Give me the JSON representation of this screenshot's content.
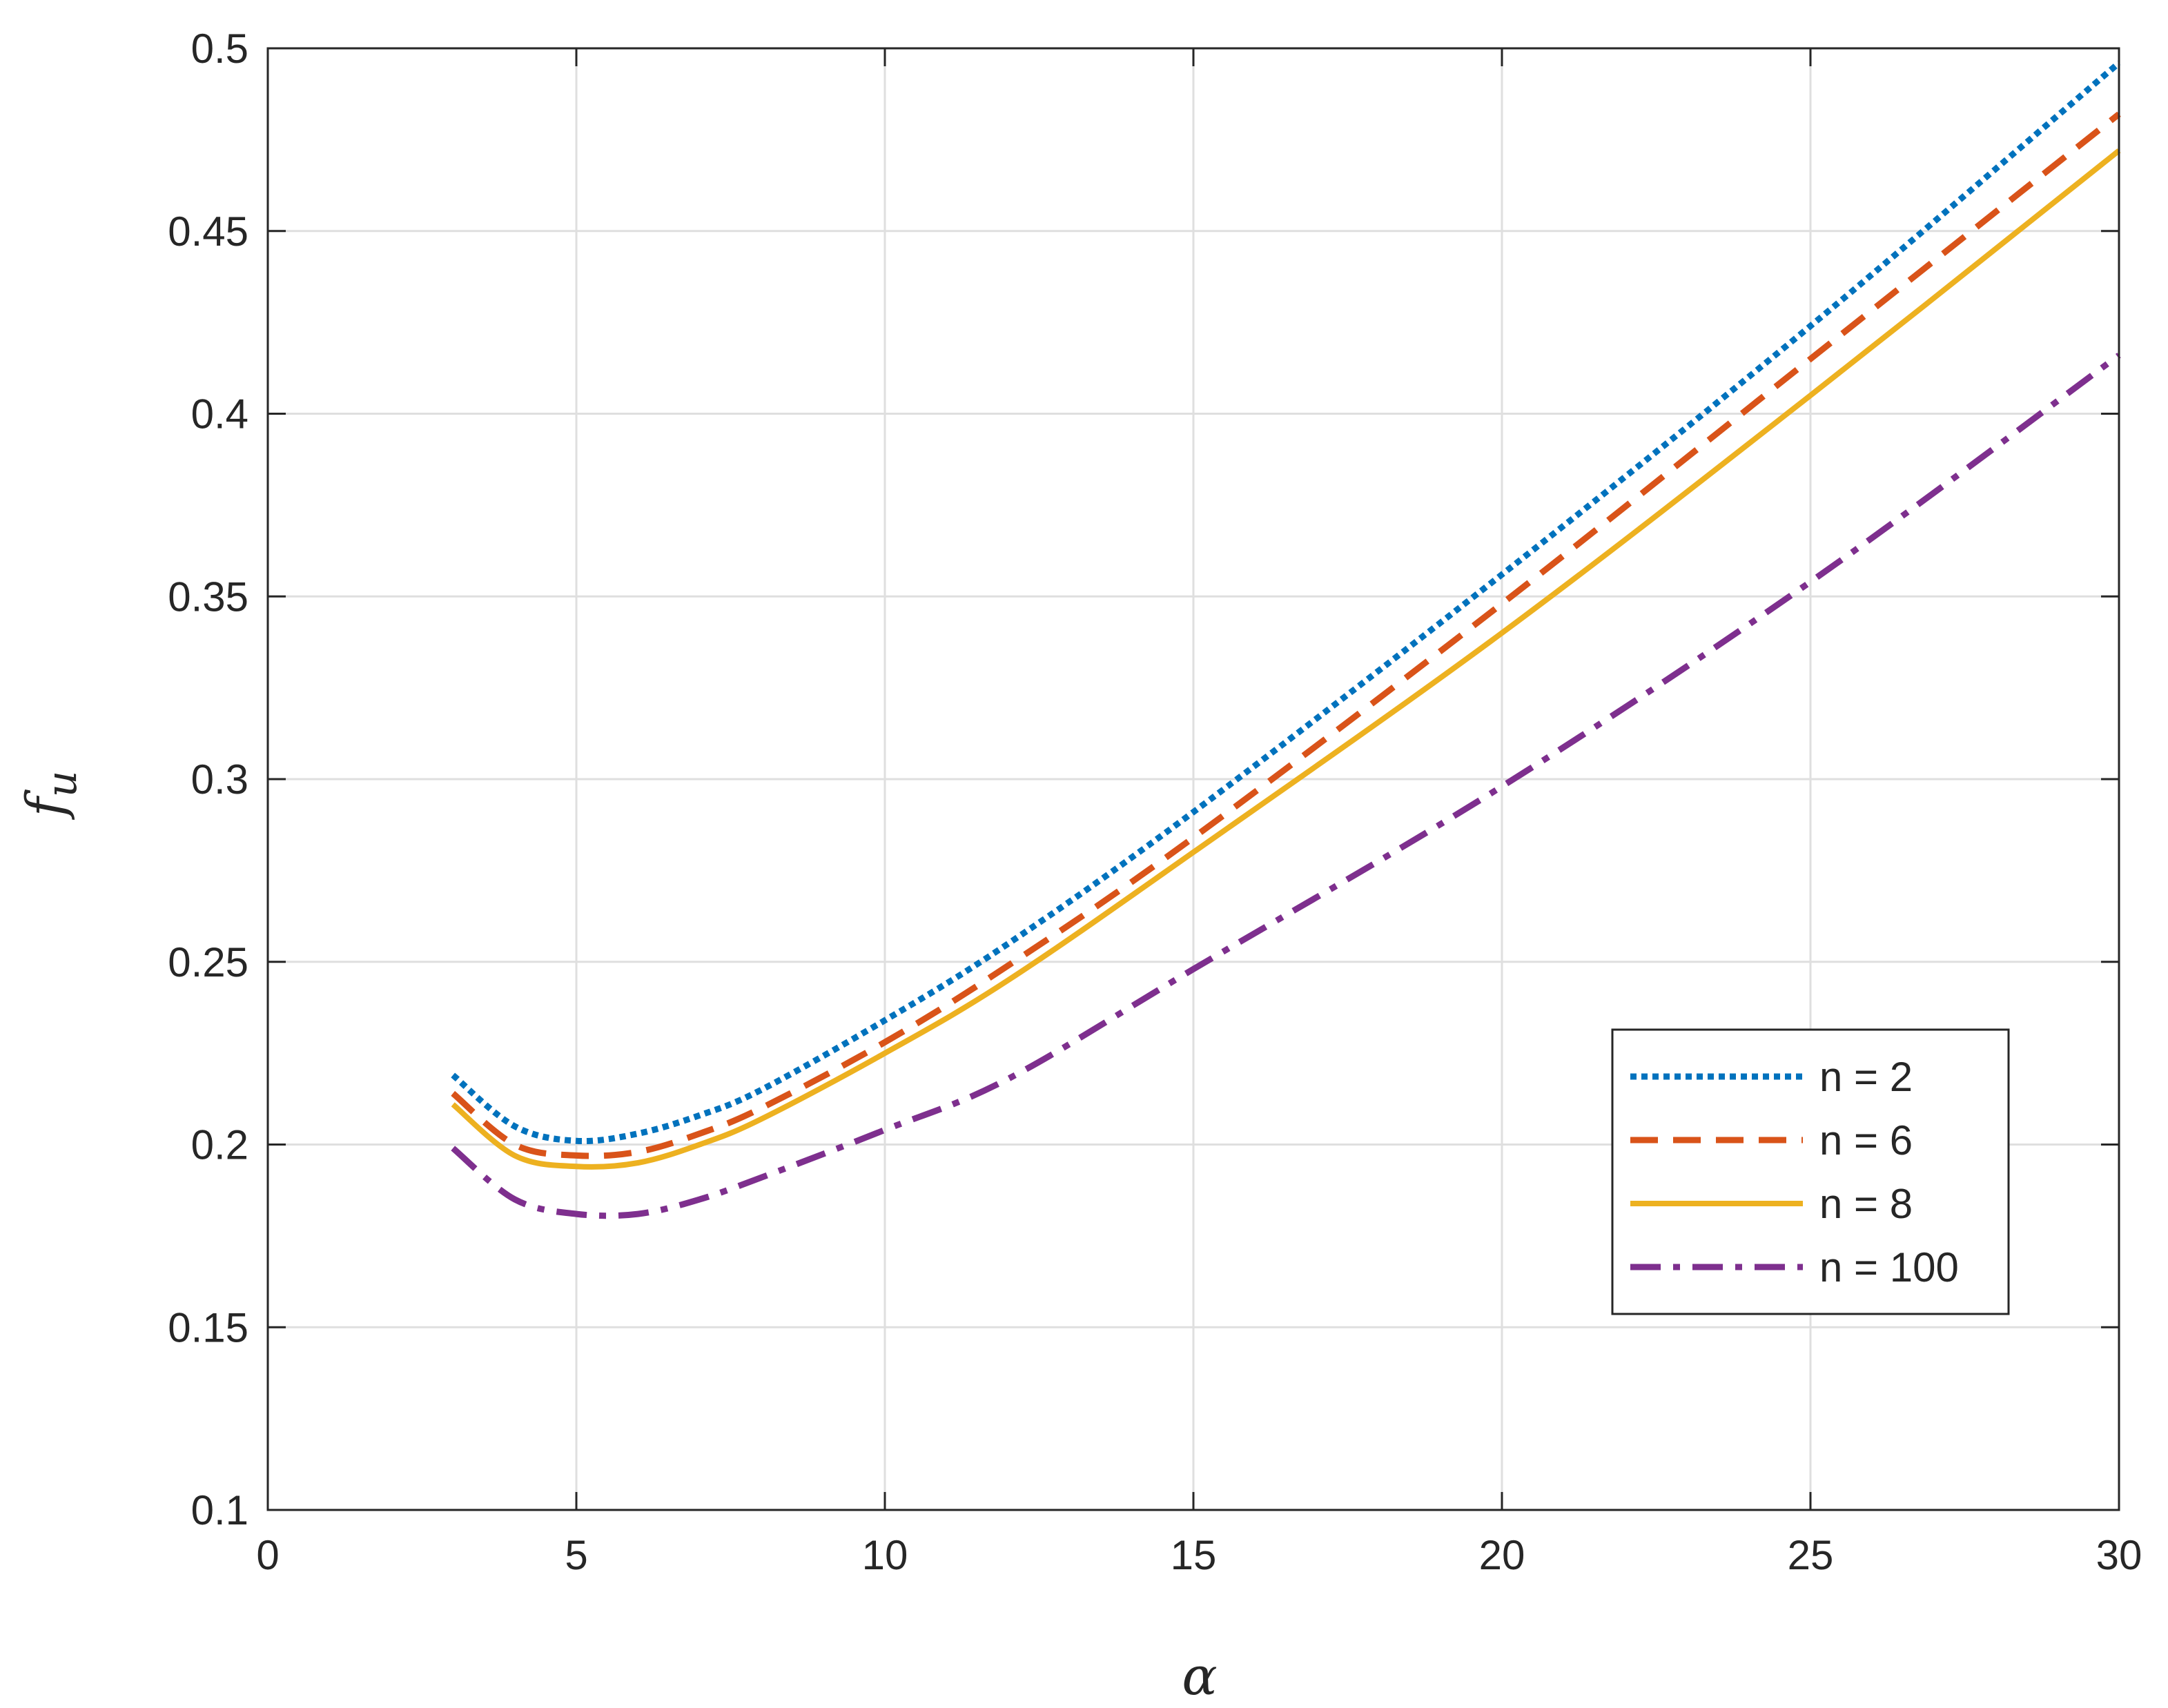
{
  "chart_data": {
    "type": "line",
    "title": "",
    "xlabel": "α",
    "ylabel": "f",
    "ylabel_sub": "u",
    "xlim": [
      0,
      30
    ],
    "ylim": [
      0.1,
      0.5
    ],
    "xticks": [
      0,
      5,
      10,
      15,
      20,
      25,
      30
    ],
    "xtick_labels": [
      "0",
      "5",
      "10",
      "15",
      "20",
      "25",
      "30"
    ],
    "yticks": [
      0.1,
      0.15,
      0.2,
      0.25,
      0.3,
      0.35,
      0.4,
      0.45,
      0.5
    ],
    "ytick_labels": [
      "0.1",
      "0.15",
      "0.2",
      "0.25",
      "0.3",
      "0.35",
      "0.4",
      "0.45",
      "0.5"
    ],
    "grid": true,
    "legend_position": "right",
    "x": [
      3,
      4,
      5,
      6,
      7,
      8,
      10,
      12,
      15,
      20,
      25,
      30
    ],
    "series": [
      {
        "name": "n = 2",
        "color": "#0072BD",
        "style": "dotted",
        "values": [
          0.219,
          0.205,
          0.201,
          0.203,
          0.208,
          0.215,
          0.234,
          0.255,
          0.291,
          0.356,
          0.424,
          0.496
        ]
      },
      {
        "name": "n = 6",
        "color": "#D95319",
        "style": "dashed",
        "values": [
          0.214,
          0.2,
          0.197,
          0.198,
          0.203,
          0.21,
          0.228,
          0.249,
          0.284,
          0.348,
          0.415,
          0.482
        ]
      },
      {
        "name": "n = 8",
        "color": "#EDB120",
        "style": "solid",
        "values": [
          0.211,
          0.197,
          0.194,
          0.195,
          0.2,
          0.207,
          0.225,
          0.245,
          0.28,
          0.34,
          0.405,
          0.472
        ]
      },
      {
        "name": "n = 100",
        "color": "#7E2F8E",
        "style": "dashdot",
        "values": [
          0.199,
          0.185,
          0.181,
          0.181,
          0.185,
          0.191,
          0.204,
          0.218,
          0.248,
          0.298,
          0.354,
          0.416
        ]
      }
    ]
  }
}
